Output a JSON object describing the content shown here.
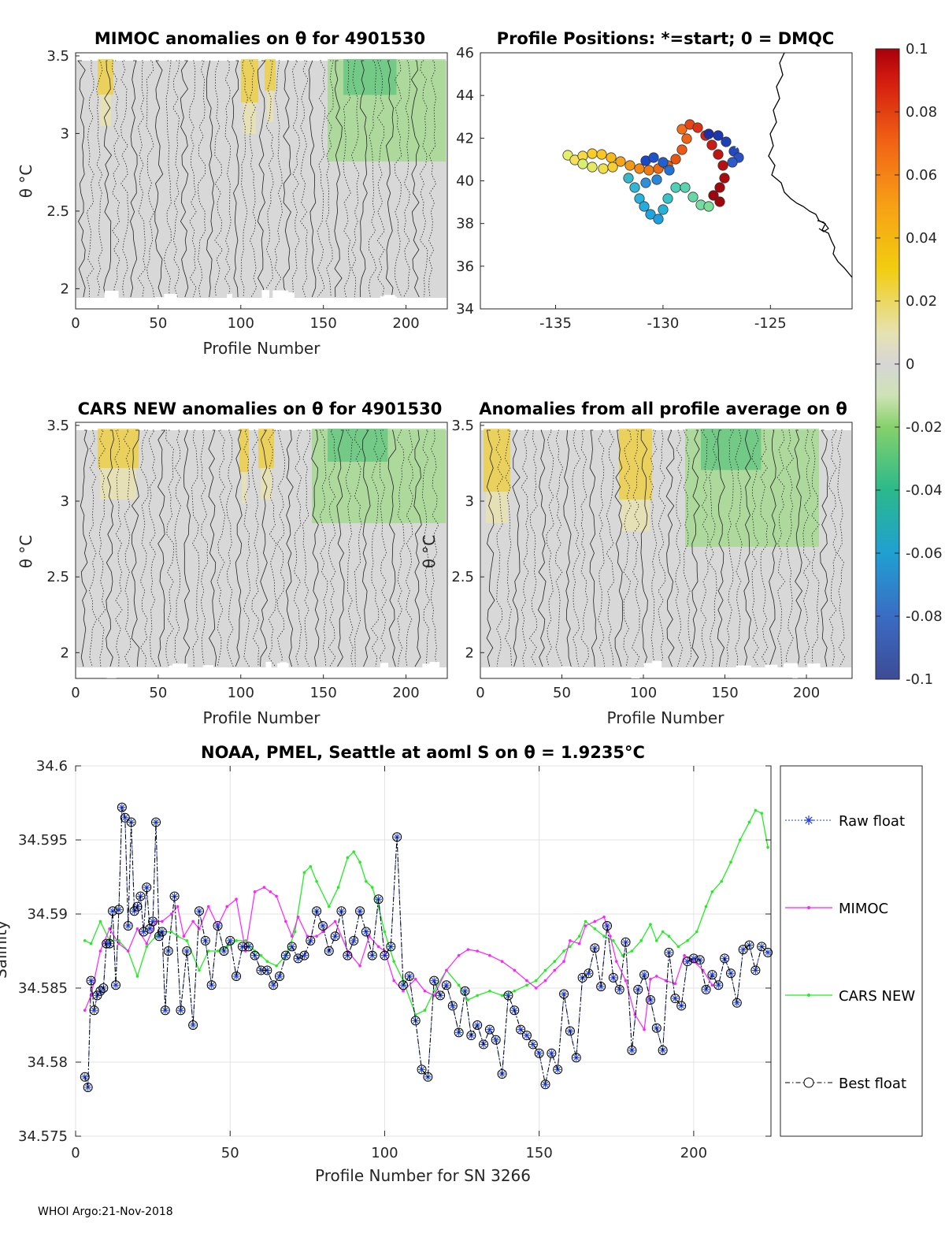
{
  "panels": {
    "p1": {
      "title": "MIMOC anomalies on θ  for 4901530",
      "xlabel": "Profile Number",
      "ylabel": "θ °C",
      "xticks": [
        "0",
        "50",
        "100",
        "150",
        "200"
      ],
      "yticks": [
        "2",
        "2.5",
        "3",
        "3.5"
      ]
    },
    "p2": {
      "title": "Profile Positions: *=start; 0 = DMQC",
      "xticks": [
        "-135",
        "-130",
        "-125"
      ],
      "yticks": [
        "34",
        "36",
        "38",
        "40",
        "42",
        "44",
        "46"
      ]
    },
    "p3": {
      "title": "CARS NEW anomalies on θ for 4901530",
      "xlabel": "Profile Number",
      "ylabel": "θ °C",
      "xticks": [
        "0",
        "50",
        "100",
        "150",
        "200"
      ],
      "yticks": [
        "2",
        "2.5",
        "3",
        "3.5"
      ]
    },
    "p4": {
      "title": "Anomalies from all profile average on θ",
      "xlabel": "Profile Number",
      "ylabel": "θ °C",
      "xticks": [
        "0",
        "50",
        "100",
        "150",
        "200"
      ],
      "yticks": [
        "2",
        "2.5",
        "3",
        "3.5"
      ]
    }
  },
  "colorbar": {
    "ticks": [
      "0.1",
      "0.08",
      "0.06",
      "0.04",
      "0.02",
      "0",
      "-0.02",
      "-0.04",
      "-0.06",
      "-0.08",
      "-0.1"
    ]
  },
  "footer": "WHOI Argo:21-Nov-2018",
  "colors": {
    "raw": "#1f3fd6",
    "mimoc": "#ff22ff",
    "cars": "#22ee22",
    "best": "#000000"
  },
  "chart_data": {
    "type": "line",
    "title": "NOAA, PMEL, Seattle at aoml S on θ = 1.9235°C",
    "xlabel": "Profile Number for SN 3266",
    "ylabel": "Salinity",
    "xlim": [
      0,
      225
    ],
    "ylim": [
      34.575,
      34.6
    ],
    "xticks": [
      "0",
      "50",
      "100",
      "150",
      "200"
    ],
    "yticks": [
      "34.6",
      "34.595",
      "34.59",
      "34.585",
      "34.58",
      "34.575"
    ],
    "legend": [
      "Raw float",
      "MIMOC",
      "CARS NEW",
      "Best float"
    ],
    "legend_position": "right-outside",
    "series": [
      {
        "name": "Raw float",
        "x": [
          3,
          4,
          5,
          6,
          7,
          8,
          9,
          10,
          11,
          12,
          13,
          14,
          15,
          16,
          17,
          18,
          19,
          20,
          21,
          22,
          23,
          24,
          25,
          26,
          27,
          28,
          29,
          30,
          32,
          34,
          36,
          38,
          40,
          42,
          44,
          46,
          48,
          50,
          52,
          54,
          56,
          58,
          60,
          62,
          64,
          66,
          68,
          70,
          72,
          74,
          76,
          78,
          80,
          82,
          84,
          86,
          88,
          90,
          92,
          94,
          96,
          98,
          100,
          102,
          104,
          106,
          108,
          110,
          112,
          114,
          116,
          118,
          120,
          122,
          124,
          126,
          128,
          130,
          132,
          134,
          136,
          138,
          140,
          142,
          144,
          146,
          148,
          150,
          152,
          154,
          156,
          158,
          160,
          162,
          164,
          166,
          168,
          170,
          172,
          174,
          176,
          178,
          180,
          182,
          184,
          186,
          188,
          190,
          192,
          194,
          196,
          198,
          200,
          202,
          204,
          206,
          208,
          210,
          212,
          214,
          216,
          218,
          220,
          222,
          224
        ],
        "y": [
          34.579,
          34.5783,
          34.5855,
          34.5835,
          34.5845,
          34.5848,
          34.585,
          34.588,
          34.588,
          34.5902,
          34.5852,
          34.5903,
          34.5972,
          34.5965,
          34.5892,
          34.5962,
          34.5902,
          34.5905,
          34.5912,
          34.5888,
          34.5918,
          34.589,
          34.5895,
          34.5962,
          34.5885,
          34.5888,
          34.5835,
          34.5875,
          34.5912,
          34.5835,
          34.5875,
          34.5825,
          34.5902,
          34.5882,
          34.5852,
          34.5892,
          34.5875,
          34.5882,
          34.5858,
          34.5878,
          34.5878,
          34.5872,
          34.5862,
          34.5862,
          34.5852,
          34.5858,
          34.5872,
          34.5878,
          34.587,
          34.5872,
          34.5882,
          34.5902,
          34.5892,
          34.5875,
          34.5885,
          34.5902,
          34.5872,
          34.5882,
          34.5902,
          34.5888,
          34.5872,
          34.591,
          34.5872,
          34.5878,
          34.5952,
          34.5852,
          34.5858,
          34.5828,
          34.5795,
          34.579,
          34.5855,
          34.5845,
          34.5852,
          34.5838,
          34.582,
          34.5848,
          34.5818,
          34.5825,
          34.5812,
          34.5822,
          34.5815,
          34.5792,
          34.5845,
          34.5835,
          34.5822,
          34.5818,
          34.5812,
          34.5806,
          34.5785,
          34.5806,
          34.5795,
          34.5846,
          34.5821,
          34.5803,
          34.5857,
          34.586,
          34.5877,
          34.5851,
          34.5892,
          34.5857,
          34.5849,
          34.5881,
          34.5808,
          34.5849,
          34.5859,
          34.5842,
          34.5823,
          34.5808,
          34.5874,
          34.5843,
          34.5838,
          34.5868,
          34.587,
          34.5869,
          34.5849,
          34.5859,
          34.5852,
          34.587,
          34.586,
          34.584,
          34.5876,
          34.5879,
          34.5862,
          34.5878,
          34.5874
        ]
      },
      {
        "name": "MIMOC",
        "x": [
          3,
          5,
          8,
          11,
          14,
          17,
          20,
          23,
          26,
          28,
          31,
          33,
          35,
          38,
          40,
          43,
          46,
          49,
          52,
          55,
          58,
          61,
          63,
          65,
          68,
          70,
          72,
          75,
          78,
          80,
          84,
          88,
          92,
          95,
          98,
          100,
          103,
          106,
          110,
          113,
          116,
          120,
          124,
          127,
          130,
          134,
          138,
          142,
          146,
          149,
          152,
          155,
          158,
          160,
          163,
          165,
          168,
          171,
          173,
          175,
          178,
          181,
          184,
          186,
          188,
          191,
          194,
          197,
          200,
          203,
          206
        ],
        "y": [
          34.5835,
          34.5845,
          34.5875,
          34.589,
          34.588,
          34.5875,
          34.589,
          34.588,
          34.5895,
          34.5895,
          34.59,
          34.5905,
          34.5885,
          34.5895,
          34.589,
          34.5905,
          34.5892,
          34.5905,
          34.591,
          34.5875,
          34.5915,
          34.5918,
          34.5915,
          34.5912,
          34.5895,
          34.5885,
          34.5898,
          34.5885,
          34.5885,
          34.5888,
          34.5895,
          34.5875,
          34.5865,
          34.5885,
          34.5878,
          34.5875,
          34.5855,
          34.5848,
          34.5856,
          34.5848,
          34.5845,
          34.5862,
          34.5872,
          34.5876,
          34.5875,
          34.5872,
          34.5868,
          34.5862,
          34.5855,
          34.585,
          34.5855,
          34.5862,
          34.5868,
          34.5882,
          34.588,
          34.5892,
          34.5895,
          34.5898,
          34.5885,
          34.5868,
          34.5855,
          34.5832,
          34.5822,
          34.5856,
          34.5858,
          34.5855,
          34.5853,
          34.5872,
          34.5868,
          34.5862,
          34.5852
        ]
      },
      {
        "name": "CARS NEW",
        "x": [
          3,
          5,
          8,
          11,
          14,
          17,
          20,
          23,
          26,
          28,
          31,
          33,
          36,
          40,
          43,
          46,
          49,
          52,
          55,
          58,
          60,
          62,
          65,
          68,
          71,
          74,
          76,
          78,
          82,
          85,
          88,
          90,
          92,
          94,
          96,
          98,
          100,
          103,
          106,
          110,
          113,
          116,
          120,
          124,
          127,
          130,
          134,
          138,
          142,
          146,
          149,
          152,
          155,
          158,
          160,
          163,
          165,
          168,
          171,
          174,
          177,
          180,
          183,
          186,
          188,
          190,
          192,
          195,
          198,
          201,
          204,
          206,
          209,
          212,
          215,
          218,
          220,
          222,
          224
        ],
        "y": [
          34.5882,
          34.588,
          34.5895,
          34.5882,
          34.5882,
          34.5875,
          34.5858,
          34.5878,
          34.5885,
          34.5888,
          34.5888,
          34.5885,
          34.5882,
          34.5862,
          34.5875,
          34.5875,
          34.5878,
          34.5882,
          34.5882,
          34.5875,
          34.5872,
          34.5868,
          34.5865,
          34.5872,
          34.5888,
          34.5928,
          34.5932,
          34.5922,
          34.5905,
          34.5918,
          34.5938,
          34.5942,
          34.5935,
          34.5922,
          34.5918,
          34.5905,
          34.5888,
          34.5868,
          34.5855,
          34.5832,
          34.5835,
          34.5848,
          34.5862,
          34.5852,
          34.5842,
          34.5845,
          34.5848,
          34.5845,
          34.5848,
          34.5852,
          34.5855,
          34.5862,
          34.5868,
          34.5875,
          34.5878,
          34.5885,
          34.5895,
          34.589,
          34.5885,
          34.5882,
          34.5872,
          34.5875,
          34.5882,
          34.5893,
          34.5882,
          34.5888,
          34.5885,
          34.5878,
          34.5882,
          34.5888,
          34.5905,
          34.5915,
          34.5922,
          34.5935,
          34.595,
          34.5962,
          34.597,
          34.5968,
          34.5945
        ]
      },
      {
        "name": "Best float",
        "x": [
          3,
          4,
          5,
          6,
          7,
          8,
          9,
          10,
          11,
          12,
          13,
          14,
          15,
          16,
          17,
          18,
          19,
          20,
          21,
          22,
          23,
          24,
          25,
          26,
          27,
          28,
          29,
          30,
          32,
          34,
          36,
          38,
          40,
          42,
          44,
          46,
          48,
          50,
          52,
          54,
          56,
          58,
          60,
          62,
          64,
          66,
          68,
          70,
          72,
          74,
          76,
          78,
          80,
          82,
          84,
          86,
          88,
          90,
          92,
          94,
          96,
          98,
          100,
          102,
          104,
          106,
          108,
          110,
          112,
          114,
          116,
          118,
          120,
          122,
          124,
          126,
          128,
          130,
          132,
          134,
          136,
          138,
          140,
          142,
          144,
          146,
          148,
          150,
          152,
          154,
          156,
          158,
          160,
          162,
          164,
          166,
          168,
          170,
          172,
          174,
          176,
          178,
          180,
          182,
          184,
          186,
          188,
          190,
          192,
          194,
          196,
          198,
          200,
          202,
          204,
          206,
          208,
          210,
          212,
          214,
          216,
          218,
          220,
          222,
          224
        ],
        "y": [
          34.579,
          34.5783,
          34.5855,
          34.5835,
          34.5845,
          34.5848,
          34.585,
          34.588,
          34.588,
          34.5902,
          34.5852,
          34.5903,
          34.5972,
          34.5965,
          34.5892,
          34.5962,
          34.5902,
          34.5905,
          34.5912,
          34.5888,
          34.5918,
          34.589,
          34.5895,
          34.5962,
          34.5885,
          34.5888,
          34.5835,
          34.5875,
          34.5912,
          34.5835,
          34.5875,
          34.5825,
          34.5902,
          34.5882,
          34.5852,
          34.5892,
          34.5875,
          34.5882,
          34.5858,
          34.5878,
          34.5878,
          34.5872,
          34.5862,
          34.5862,
          34.5852,
          34.5858,
          34.5872,
          34.5878,
          34.587,
          34.5872,
          34.5882,
          34.5902,
          34.5892,
          34.5875,
          34.5885,
          34.5902,
          34.5872,
          34.5882,
          34.5902,
          34.5888,
          34.5872,
          34.591,
          34.5872,
          34.5878,
          34.5952,
          34.5852,
          34.5858,
          34.5828,
          34.5795,
          34.579,
          34.5855,
          34.5845,
          34.5852,
          34.5838,
          34.582,
          34.5848,
          34.5818,
          34.5825,
          34.5812,
          34.5822,
          34.5815,
          34.5792,
          34.5845,
          34.5835,
          34.5822,
          34.5818,
          34.5812,
          34.5806,
          34.5785,
          34.5806,
          34.5795,
          34.5846,
          34.5821,
          34.5803,
          34.5857,
          34.586,
          34.5877,
          34.5851,
          34.5892,
          34.5857,
          34.5849,
          34.5881,
          34.5808,
          34.5849,
          34.5859,
          34.5842,
          34.5823,
          34.5808,
          34.5874,
          34.5843,
          34.5838,
          34.5868,
          34.587,
          34.5869,
          34.5849,
          34.5859,
          34.5852,
          34.587,
          34.586,
          34.584,
          34.5876,
          34.5879,
          34.5862,
          34.5878,
          34.5874
        ]
      }
    ]
  }
}
